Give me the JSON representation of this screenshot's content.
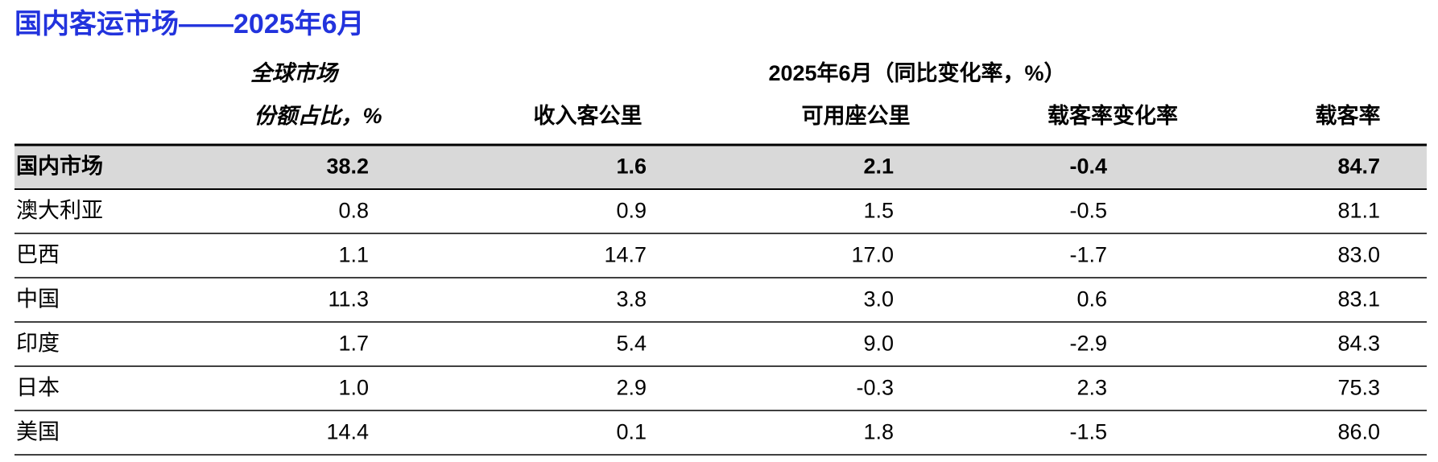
{
  "title": "国内客运市场——2025年6月",
  "table": {
    "share_header": [
      "全球市场",
      "份额占比，%"
    ],
    "group_header": "2025年6月（同比变化率，%）",
    "columns": [
      "收入客公里",
      "可用座公里",
      "载客率变化率",
      "载客率"
    ],
    "rows": [
      [
        "国内市场",
        "38.2",
        "1.6",
        "2.1",
        "-0.4",
        "84.7"
      ],
      [
        "澳大利亚",
        "0.8",
        "0.9",
        "1.5",
        "-0.5",
        "81.1"
      ],
      [
        "巴西",
        "1.1",
        "14.7",
        "17.0",
        "-1.7",
        "83.0"
      ],
      [
        "中国",
        "11.3",
        "3.8",
        "3.0",
        "0.6",
        "83.1"
      ],
      [
        "印度",
        "1.7",
        "5.4",
        "9.0",
        "-2.9",
        "84.3"
      ],
      [
        "日本",
        "1.0",
        "2.9",
        "-0.3",
        "2.3",
        "75.3"
      ],
      [
        "美国",
        "14.4",
        "0.1",
        "1.8",
        "-1.5",
        "86.0"
      ]
    ]
  }
}
